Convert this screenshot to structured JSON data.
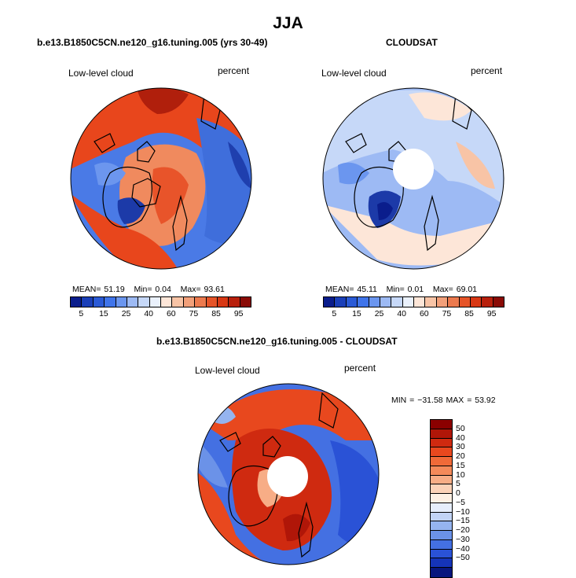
{
  "figure": {
    "season_title": "JJA",
    "panels": [
      {
        "title": "b.e13.B1850C5CN.ne120_g16.tuning.005 (yrs 30-49)",
        "field_label": "Low-level cloud",
        "units_label": "percent",
        "stats": {
          "mean_label": "MEAN=",
          "mean": "51.19",
          "min_label": "Min=",
          "min": "0.04",
          "max_label": "Max=",
          "max": "93.61"
        },
        "has_polar_hole": false
      },
      {
        "title": "CLOUDSAT",
        "field_label": "Low-level cloud",
        "units_label": "percent",
        "stats": {
          "mean_label": "MEAN=",
          "mean": "45.11",
          "min_label": "Min=",
          "min": "0.01",
          "max_label": "Max=",
          "max": "69.01"
        },
        "has_polar_hole": true
      },
      {
        "title": "b.e13.B1850C5CN.ne120_g16.tuning.005 - CLOUDSAT",
        "field_label": "Low-level cloud",
        "units_label": "percent",
        "stats_text": "MIN = −31.58 MAX =  53.92",
        "has_polar_hole": true
      }
    ],
    "abs_colorbar": {
      "tick_labels": [
        "5",
        "15",
        "25",
        "40",
        "60",
        "75",
        "85",
        "95"
      ],
      "colors": [
        "#0a1d8c",
        "#1a3fb8",
        "#2a5ad6",
        "#3f74ea",
        "#6b96ef",
        "#9dbaf4",
        "#c6d8f8",
        "#eaf1fc",
        "#fde6d8",
        "#f8c4a6",
        "#f2a07a",
        "#ec7a4e",
        "#e65428",
        "#d83814",
        "#b8200c",
        "#8a0b06"
      ]
    },
    "diff_colorbar": {
      "tick_labels": [
        "50",
        "40",
        "30",
        "20",
        "15",
        "10",
        "5",
        "0",
        "−5",
        "−10",
        "−15",
        "−20",
        "−30",
        "−40",
        "−50"
      ],
      "colors": [
        "#8b0000",
        "#b01608",
        "#cf2a10",
        "#e8481e",
        "#f06a38",
        "#f48a5a",
        "#f7ad86",
        "#fbd2b8",
        "#fdf0e4",
        "#e6eefc",
        "#c2d4f6",
        "#95b4ef",
        "#6b92e8",
        "#4470e2",
        "#2a52d6",
        "#1534b8",
        "#08167e"
      ]
    }
  }
}
